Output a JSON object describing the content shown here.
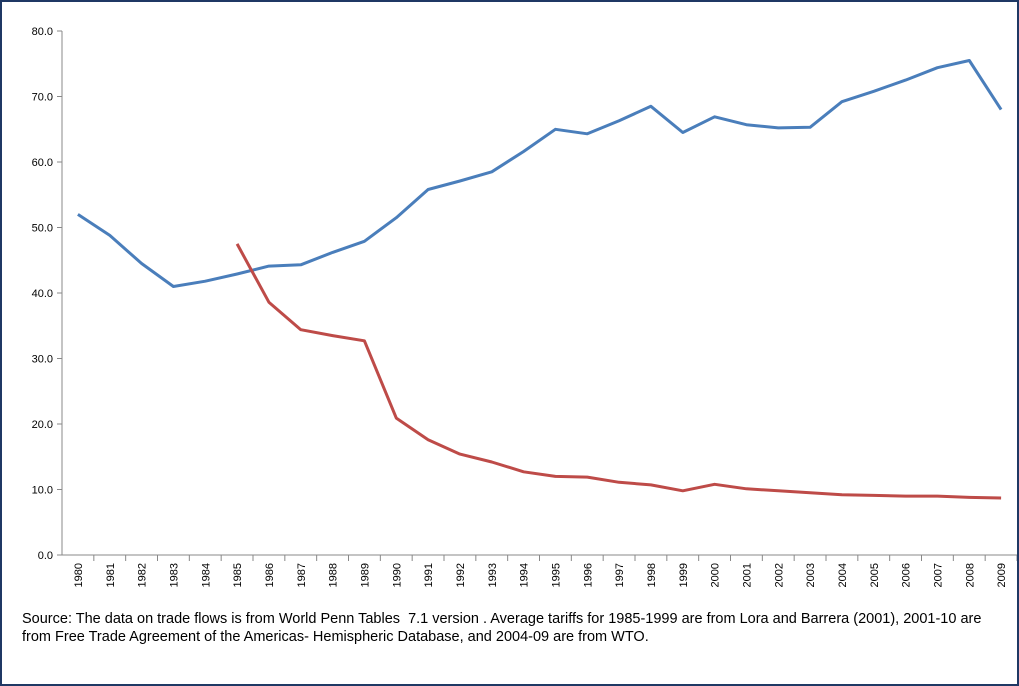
{
  "chart_data": {
    "type": "line",
    "categories": [
      "1980",
      "1981",
      "1982",
      "1983",
      "1984",
      "1985",
      "1986",
      "1987",
      "1988",
      "1989",
      "1990",
      "1991",
      "1992",
      "1993",
      "1994",
      "1995",
      "1996",
      "1997",
      "1998",
      "1999",
      "2000",
      "2001",
      "2002",
      "2003",
      "2004",
      "2005",
      "2006",
      "2007",
      "2008",
      "2009"
    ],
    "series": [
      {
        "color": "#4a7ebb",
        "values": [
          52.0,
          48.8,
          44.5,
          41.0,
          41.8,
          42.9,
          44.1,
          44.3,
          46.2,
          47.9,
          51.5,
          55.8,
          57.1,
          58.5,
          61.6,
          65.0,
          64.3,
          66.3,
          68.5,
          64.5,
          66.9,
          65.7,
          65.2,
          65.3,
          69.2,
          70.8,
          72.5,
          74.4,
          75.5,
          68.0
        ]
      },
      {
        "color": "#be4b48",
        "values": [
          null,
          null,
          null,
          null,
          null,
          47.5,
          38.6,
          34.4,
          33.5,
          32.7,
          20.9,
          17.6,
          15.4,
          14.2,
          12.7,
          12.0,
          11.9,
          11.1,
          10.7,
          9.8,
          10.8,
          10.1,
          9.8,
          9.5,
          9.2,
          9.1,
          9.0,
          9.0,
          8.8,
          8.7
        ]
      }
    ],
    "ylim": [
      0,
      80
    ],
    "yticks": [
      {
        "value": 0,
        "label": "0.0"
      },
      {
        "value": 10,
        "label": "10.0"
      },
      {
        "value": 20,
        "label": "20.0"
      },
      {
        "value": 30,
        "label": "30.0"
      },
      {
        "value": 40,
        "label": "40.0"
      },
      {
        "value": 50,
        "label": "50.0"
      },
      {
        "value": 60,
        "label": "60.0"
      },
      {
        "value": 70,
        "label": "70.0"
      },
      {
        "value": 80,
        "label": "80.0"
      }
    ],
    "grid": false,
    "source": "Source: The data on trade flows is from World Penn Tables  7.1 version . Average tariffs for 1985-1999 are from Lora and Barrera (2001), 2001-10 are from Free Trade Agreement of the Americas- Hemispheric Database, and 2004-09 are from WTO."
  }
}
